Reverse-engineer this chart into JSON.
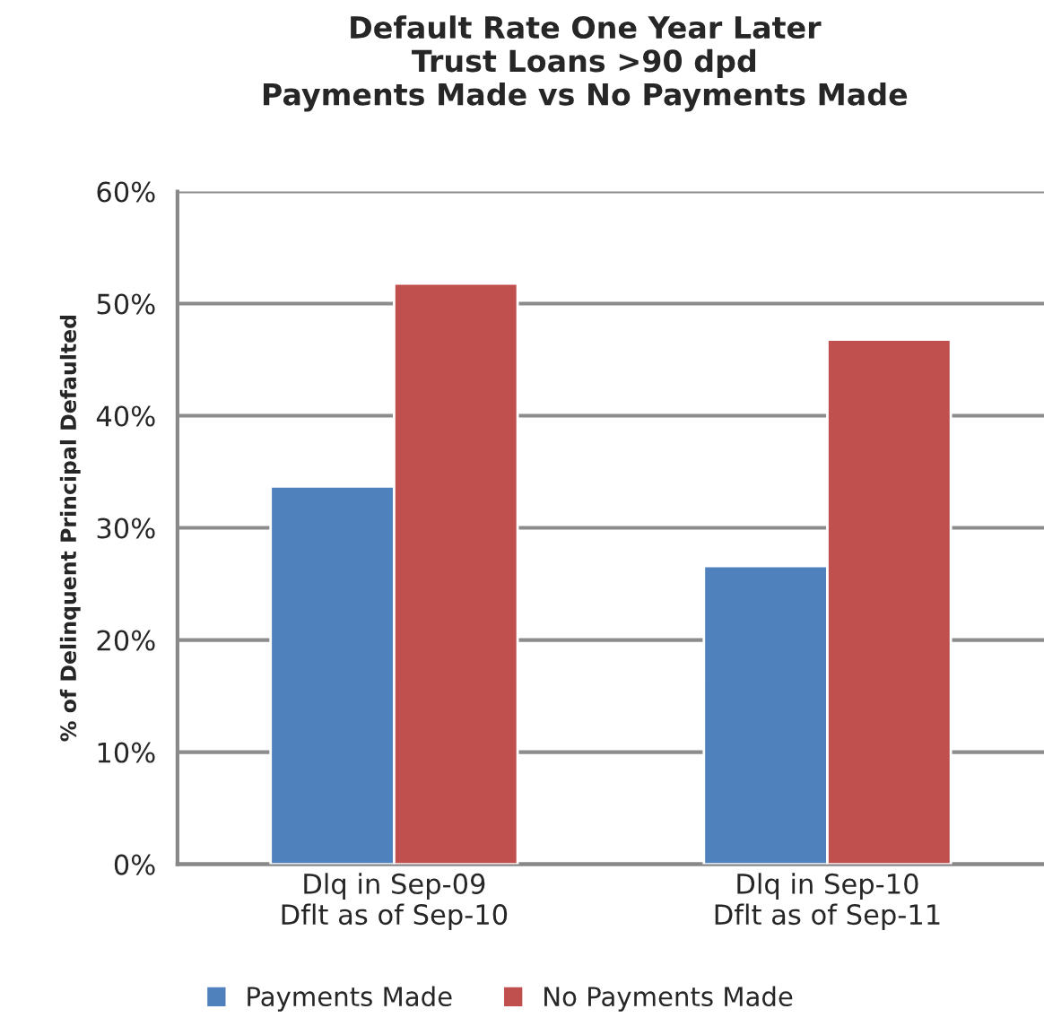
{
  "chart_data": {
    "type": "bar",
    "title": "Default Rate One Year Later\nTrust Loans >90 dpd\nPayments Made vs No Payments Made",
    "ylabel": "% of Delinquent Principal Defaulted",
    "categories": [
      "Dlq in Sep-09\nDflt as of Sep-10",
      "Dlq in Sep-10\nDflt as of Sep-11"
    ],
    "series": [
      {
        "name": "Payments Made",
        "color": "#4f81bd",
        "values": [
          33.7,
          26.6
        ]
      },
      {
        "name": "No Payments Made",
        "color": "#c0504d",
        "values": [
          51.8,
          46.8
        ]
      }
    ],
    "ylim": [
      0,
      60
    ],
    "yticks": [
      {
        "value": 0,
        "label": "0%"
      },
      {
        "value": 10,
        "label": "10%"
      },
      {
        "value": 20,
        "label": "20%"
      },
      {
        "value": 30,
        "label": "30%"
      },
      {
        "value": 40,
        "label": "40%"
      },
      {
        "value": 50,
        "label": "50%"
      },
      {
        "value": 60,
        "label": "60%"
      }
    ],
    "grid": "y",
    "legend": "bottom"
  }
}
